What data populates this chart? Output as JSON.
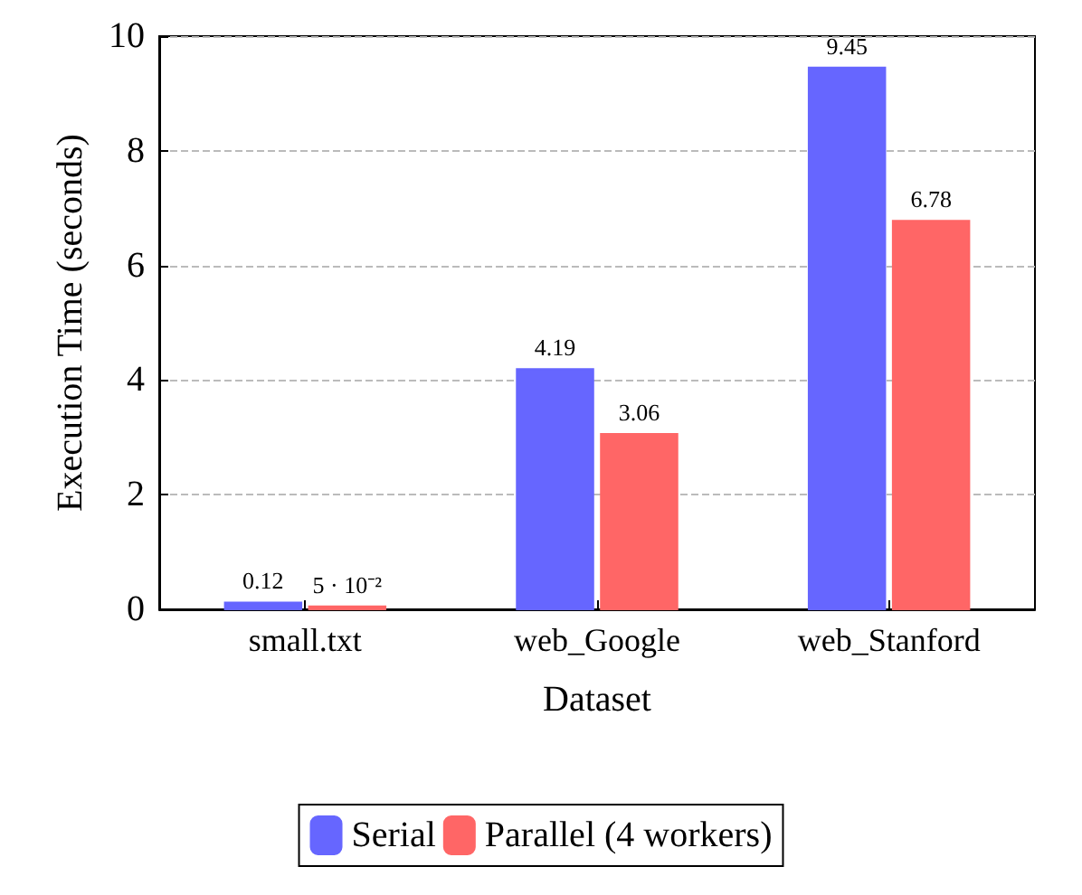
{
  "chart_data": {
    "type": "bar",
    "xlabel": "Dataset",
    "ylabel": "Execution Time (seconds)",
    "categories": [
      "small.txt",
      "web_Google",
      "web_Stanford"
    ],
    "series": [
      {
        "name": "Serial",
        "color": "#6666ff",
        "values": [
          0.12,
          4.19,
          9.45
        ],
        "value_labels": [
          "0.12",
          "4.19",
          "9.45"
        ]
      },
      {
        "name": "Parallel (4 workers)",
        "color": "#ff6666",
        "values": [
          0.05,
          3.06,
          6.78
        ],
        "value_labels": [
          "5 · 10⁻²",
          "3.06",
          "6.78"
        ]
      }
    ],
    "ylim": [
      0,
      10
    ],
    "yticks": [
      0,
      2,
      4,
      6,
      8,
      10
    ],
    "grid": "y",
    "legend": "bottom"
  }
}
